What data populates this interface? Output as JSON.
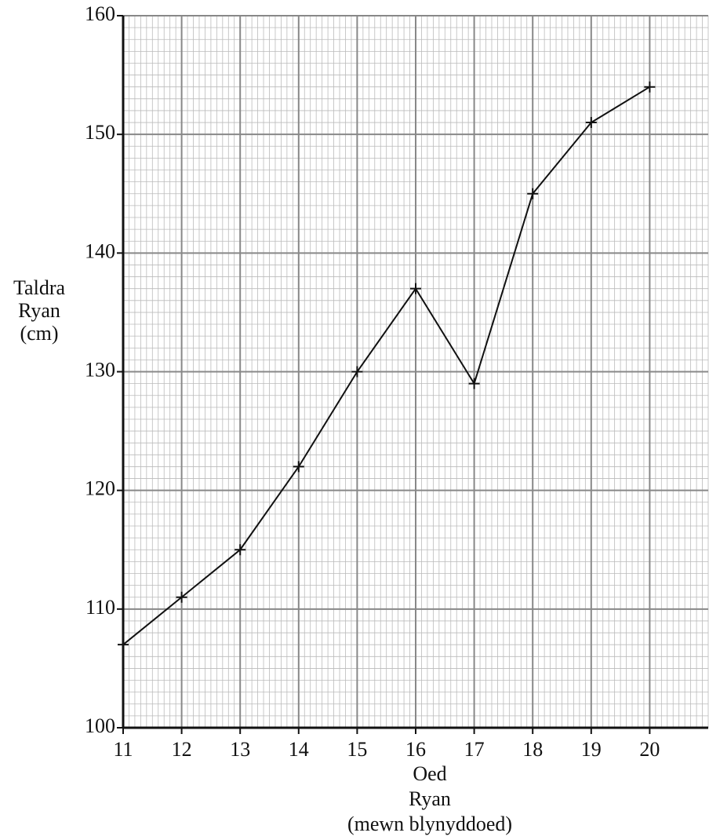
{
  "chart_data": {
    "type": "line",
    "x": [
      11,
      12,
      13,
      14,
      15,
      16,
      17,
      18,
      19,
      20
    ],
    "series": [
      {
        "name": "Taldra Ryan",
        "color": "#111111",
        "values": [
          107,
          111,
          115,
          122,
          130,
          137,
          129,
          145,
          151,
          154
        ]
      }
    ],
    "xlim": [
      11,
      21
    ],
    "xticks": [
      11,
      12,
      13,
      14,
      15,
      16,
      17,
      18,
      19,
      20
    ],
    "ylim": [
      100,
      160
    ],
    "yticks": [
      100,
      110,
      120,
      130,
      140,
      150,
      160
    ],
    "xlabel": [
      "Oed",
      "Ryan",
      "(mewn blynyddoed)"
    ],
    "ylabel": [
      "Taldra",
      "Ryan",
      "(cm)"
    ],
    "grid": true,
    "marker": "+"
  }
}
